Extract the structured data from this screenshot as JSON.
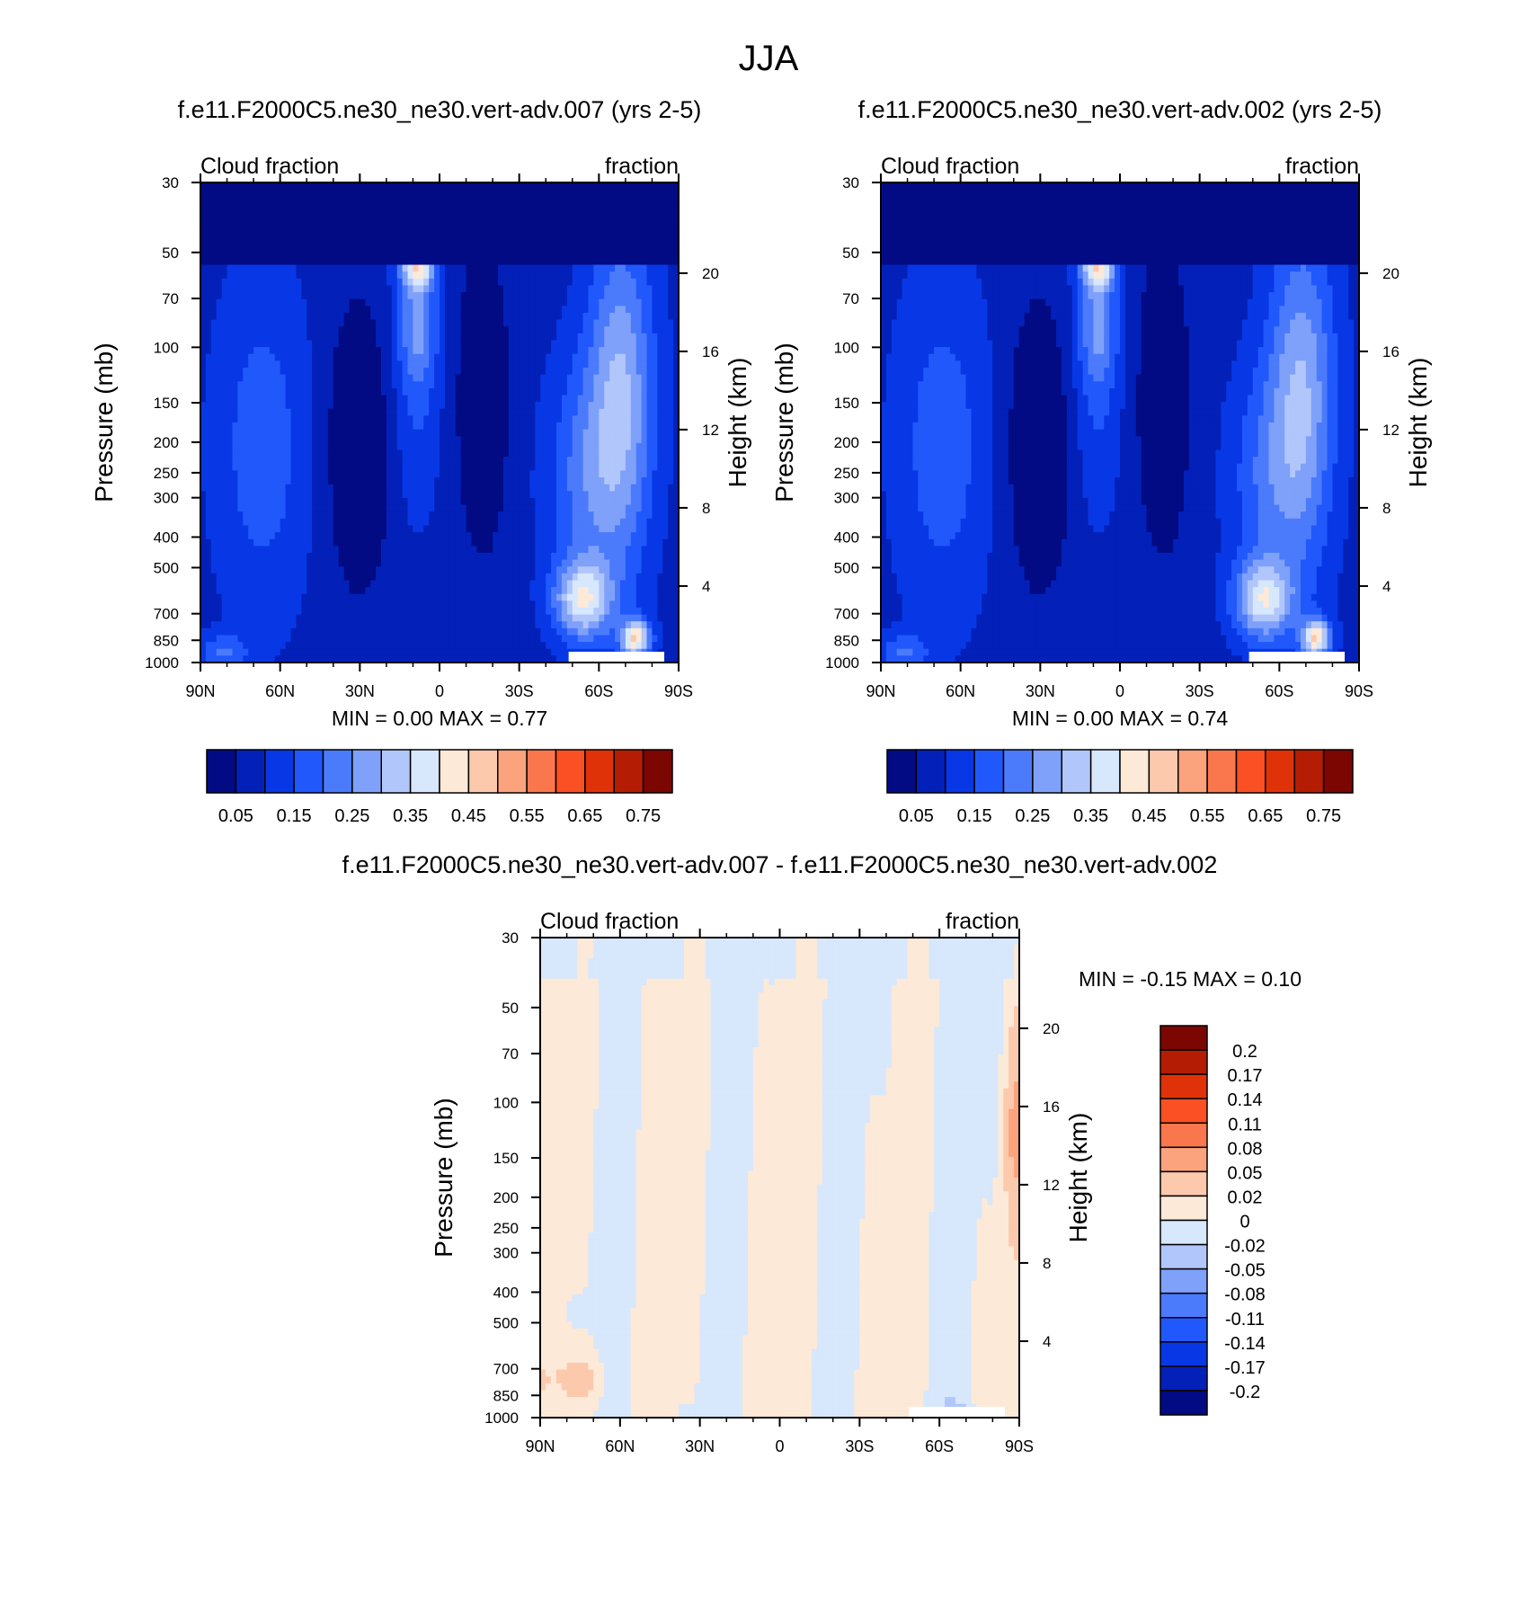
{
  "figure": {
    "title": "JJA"
  },
  "colors": {
    "abs_levels": [
      "#020b84",
      "#0321b8",
      "#0838e6",
      "#2158fc",
      "#4b7bfb",
      "#7fa1f9",
      "#b1c6fb",
      "#d7e7fc",
      "#fde9d7",
      "#fcc9ad",
      "#fba37c",
      "#fa774d",
      "#fb5023",
      "#e03209",
      "#b41d04",
      "#7c0601"
    ],
    "diff_levels": [
      "#020b84",
      "#0321b8",
      "#0838e6",
      "#2158fc",
      "#4b7bfb",
      "#7fa1f9",
      "#b1c6fb",
      "#d7e7fc",
      "#fde9d7",
      "#fcc9ad",
      "#fba37c",
      "#fa774d",
      "#fb5023",
      "#e03209",
      "#b41d04",
      "#7c0601"
    ]
  },
  "chart_data": [
    {
      "type": "heatmap",
      "title": "f.e11.F2000C5.ne30_ne30.vert-adv.007 (yrs 2-5)",
      "left_string": "Cloud fraction",
      "right_string": "fraction",
      "ylabel": "Pressure (mb)",
      "ylabel_right": "Height (km)",
      "x_ticks": [
        "90N",
        "60N",
        "30N",
        "0",
        "30S",
        "60S",
        "90S"
      ],
      "y_ticks": [
        "30",
        "50",
        "70",
        "100",
        "150",
        "200",
        "250",
        "300",
        "400",
        "500",
        "700",
        "850",
        "1000"
      ],
      "y_right_ticks": [
        "20",
        "16",
        "12",
        "8",
        "4"
      ],
      "min_max": "MIN =   0.00  MAX =   0.77",
      "xlim": [
        90,
        -90
      ],
      "ylim": [
        1000,
        30
      ],
      "y_scale": "log",
      "colorbar_labels": [
        "0.05",
        "0.15",
        "0.25",
        "0.35",
        "0.45",
        "0.55",
        "0.65",
        "0.75"
      ],
      "levels": [
        0.05,
        0.1,
        0.15,
        0.2,
        0.25,
        0.3,
        0.35,
        0.4,
        0.45,
        0.5,
        0.55,
        0.6,
        0.65,
        0.7,
        0.75
      ],
      "min": 0.0,
      "max": 0.77
    },
    {
      "type": "heatmap",
      "title": "f.e11.F2000C5.ne30_ne30.vert-adv.002 (yrs 2-5)",
      "left_string": "Cloud fraction",
      "right_string": "fraction",
      "ylabel": "Pressure (mb)",
      "ylabel_right": "Height (km)",
      "x_ticks": [
        "90N",
        "60N",
        "30N",
        "0",
        "30S",
        "60S",
        "90S"
      ],
      "y_ticks": [
        "30",
        "50",
        "70",
        "100",
        "150",
        "200",
        "250",
        "300",
        "400",
        "500",
        "700",
        "850",
        "1000"
      ],
      "y_right_ticks": [
        "20",
        "16",
        "12",
        "8",
        "4"
      ],
      "min_max": "MIN =   0.00  MAX =   0.74",
      "xlim": [
        90,
        -90
      ],
      "ylim": [
        1000,
        30
      ],
      "y_scale": "log",
      "colorbar_labels": [
        "0.05",
        "0.15",
        "0.25",
        "0.35",
        "0.45",
        "0.55",
        "0.65",
        "0.75"
      ],
      "levels": [
        0.05,
        0.1,
        0.15,
        0.2,
        0.25,
        0.3,
        0.35,
        0.4,
        0.45,
        0.5,
        0.55,
        0.6,
        0.65,
        0.7,
        0.75
      ],
      "min": 0.0,
      "max": 0.74
    },
    {
      "type": "heatmap",
      "title": "f.e11.F2000C5.ne30_ne30.vert-adv.007 - f.e11.F2000C5.ne30_ne30.vert-adv.002",
      "left_string": "Cloud fraction",
      "right_string": "fraction",
      "ylabel": "Pressure (mb)",
      "ylabel_right": "Height (km)",
      "x_ticks": [
        "90N",
        "60N",
        "30N",
        "0",
        "30S",
        "60S",
        "90S"
      ],
      "y_ticks": [
        "30",
        "50",
        "70",
        "100",
        "150",
        "200",
        "250",
        "300",
        "400",
        "500",
        "700",
        "850",
        "1000"
      ],
      "y_right_ticks": [
        "20",
        "16",
        "12",
        "8",
        "4"
      ],
      "min_max": "MIN =  -0.15  MAX =   0.10",
      "xlim": [
        90,
        -90
      ],
      "ylim": [
        1000,
        30
      ],
      "y_scale": "log",
      "colorbar_labels": [
        "0.2",
        "0.17",
        "0.14",
        "0.11",
        "0.08",
        "0.05",
        "0.02",
        "0",
        "-0.02",
        "-0.05",
        "-0.08",
        "-0.11",
        "-0.14",
        "-0.17",
        "-0.2"
      ],
      "levels": [
        -0.2,
        -0.17,
        -0.14,
        -0.11,
        -0.08,
        -0.05,
        -0.02,
        0,
        0.02,
        0.05,
        0.08,
        0.11,
        0.14,
        0.17,
        0.2
      ],
      "min": -0.15,
      "max": 0.1
    }
  ]
}
